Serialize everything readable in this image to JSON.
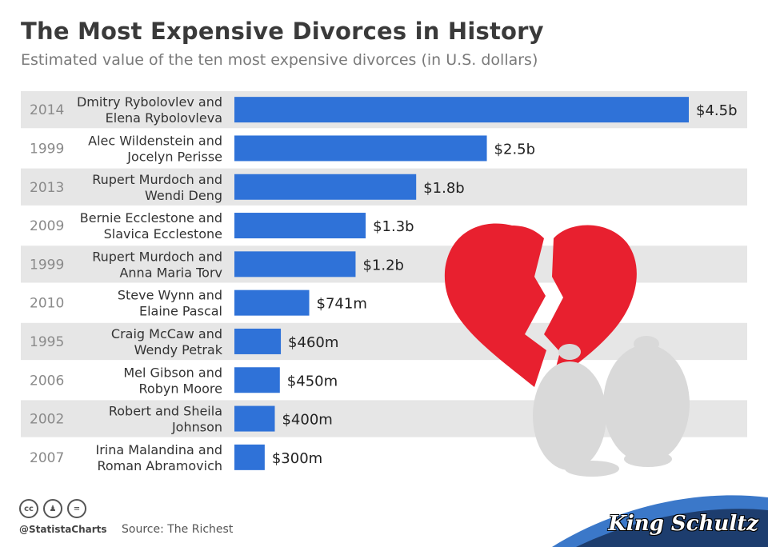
{
  "header": {
    "title": "The Most Expensive Divorces in History",
    "subtitle": "Estimated value of the ten most expensive divorces (in U.S. dollars)"
  },
  "colors": {
    "bar": "#2f72d8",
    "row_band": "#e6e6e6",
    "heart": "#e8202f",
    "money_bag": "#d9d9d9"
  },
  "chart_data": {
    "type": "bar",
    "orientation": "horizontal",
    "unit": "USD",
    "categories": [
      {
        "year": "2014",
        "line1": "Dmitry Rybolovlev and",
        "line2": "Elena Rybolovleva"
      },
      {
        "year": "1999",
        "line1": "Alec Wildenstein and",
        "line2": "Jocelyn Perisse"
      },
      {
        "year": "2013",
        "line1": "Rupert Murdoch and",
        "line2": "Wendi Deng"
      },
      {
        "year": "2009",
        "line1": "Bernie Ecclestone and",
        "line2": "Slavica Ecclestone"
      },
      {
        "year": "1999",
        "line1": "Rupert Murdoch and",
        "line2": "Anna Maria Torv"
      },
      {
        "year": "2010",
        "line1": "Steve Wynn and",
        "line2": "Elaine Pascal"
      },
      {
        "year": "1995",
        "line1": "Craig McCaw and",
        "line2": "Wendy Petrak"
      },
      {
        "year": "2006",
        "line1": "Mel Gibson and",
        "line2": "Robyn Moore"
      },
      {
        "year": "2002",
        "line1": "Robert and Sheila",
        "line2": "Johnson"
      },
      {
        "year": "2007",
        "line1": "Irina Malandina and",
        "line2": "Roman Abramovich"
      }
    ],
    "values": [
      4500000000,
      2500000000,
      1800000000,
      1300000000,
      1200000000,
      741000000,
      460000000,
      450000000,
      400000000,
      300000000
    ],
    "value_labels": [
      "$4.5b",
      "$2.5b",
      "$1.8b",
      "$1.3b",
      "$1.2b",
      "$741m",
      "$460m",
      "$450m",
      "$400m",
      "$300m"
    ],
    "xlim": [
      0,
      4500000000
    ],
    "grid": false,
    "legend": "none"
  },
  "footer": {
    "cc_icons": [
      "cc-icon",
      "attribution-icon",
      "no-derivatives-icon"
    ],
    "handle": "@StatistaCharts",
    "source": "Source: The Richest"
  },
  "brand": "King Schultz"
}
